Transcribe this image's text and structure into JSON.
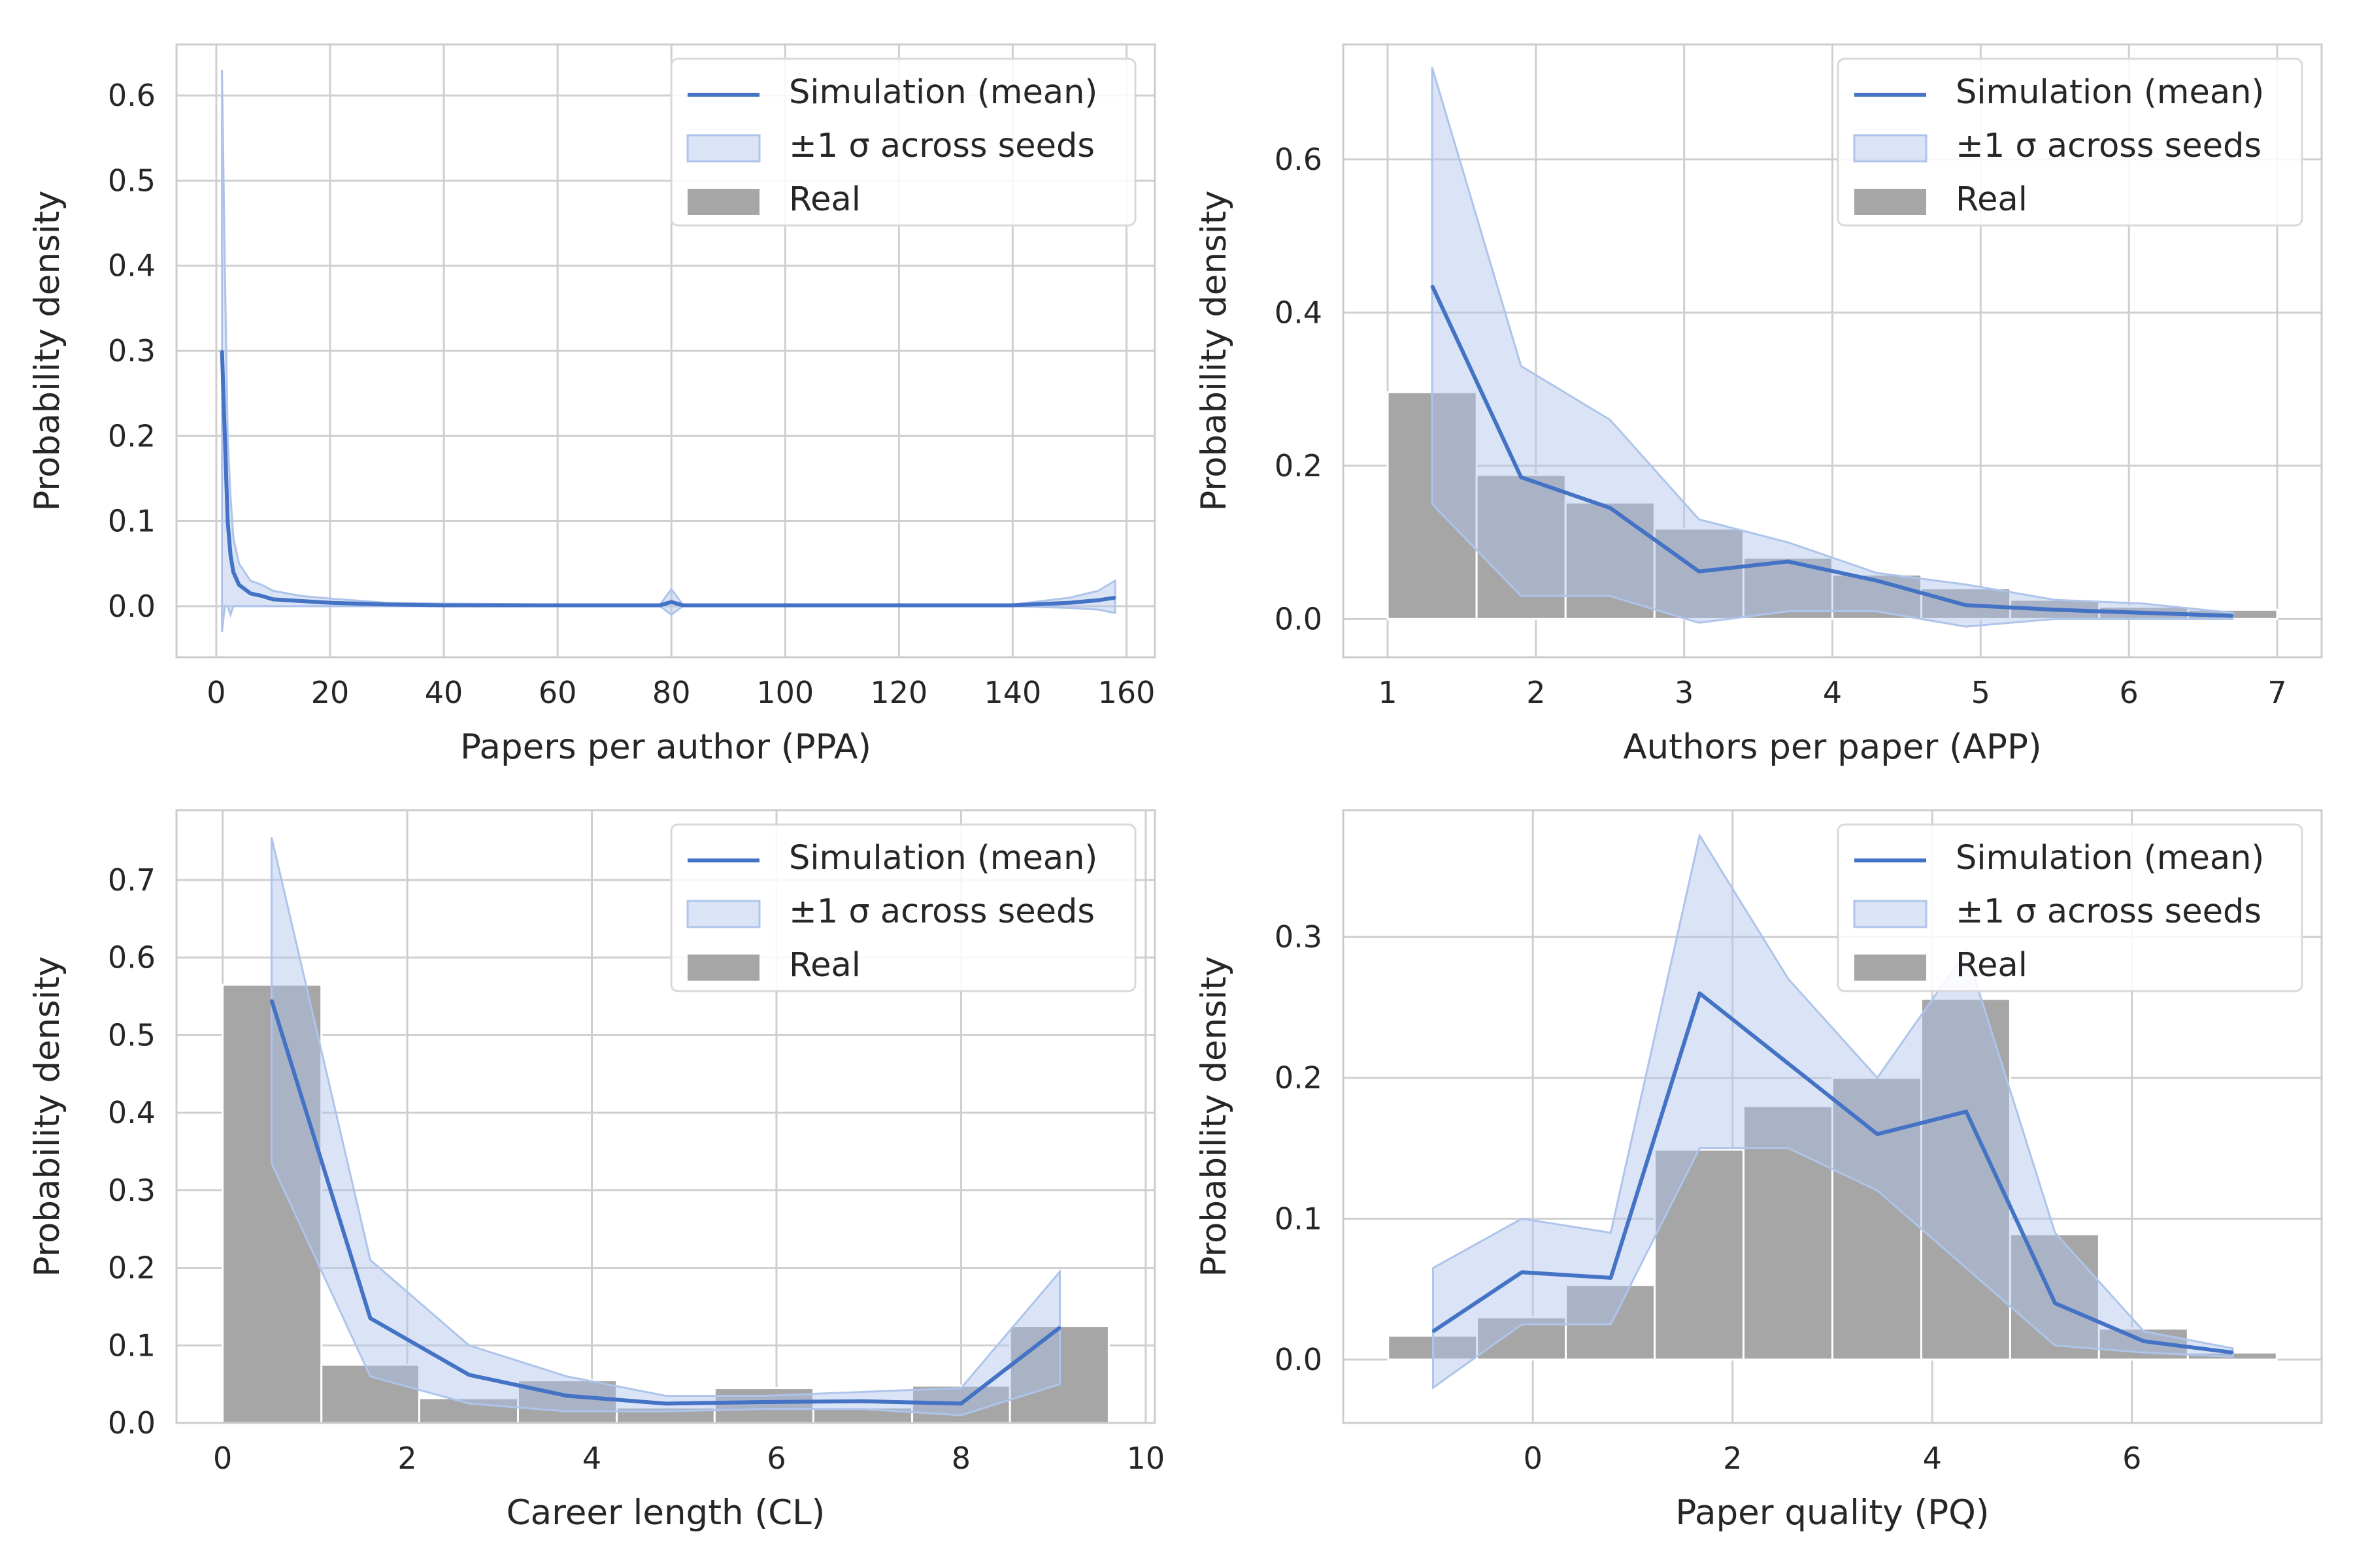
{
  "figure": {
    "colors": {
      "sim": "#4472c4",
      "band": "#aec4ea",
      "real": "#a6a6a6",
      "grid": "#cfcfcf",
      "frame": "#cccccc"
    }
  },
  "legend": {
    "entries": [
      "Simulation (mean)",
      "±1 σ across seeds",
      "Real"
    ]
  },
  "chart_data": [
    {
      "type": "line",
      "xlabel": "Papers per author (PPA)",
      "ylabel": "Probability density",
      "xlim": [
        -7,
        165
      ],
      "ylim": [
        -0.06,
        0.66
      ],
      "xticks": [
        0,
        20,
        40,
        60,
        80,
        100,
        120,
        140,
        160
      ],
      "yticks": [
        0.0,
        0.1,
        0.2,
        0.3,
        0.4,
        0.5,
        0.6
      ],
      "grid": true,
      "legend_position": "top-right",
      "real_bins": [],
      "sim": {
        "x": [
          1,
          1.5,
          2,
          2.5,
          3,
          4,
          5,
          6,
          8,
          10,
          15,
          20,
          30,
          40,
          60,
          78,
          80,
          82,
          100,
          120,
          140,
          150,
          155,
          158
        ],
        "y": [
          0.3,
          0.2,
          0.1,
          0.06,
          0.04,
          0.025,
          0.02,
          0.015,
          0.012,
          0.008,
          0.006,
          0.004,
          0.002,
          0.001,
          0.001,
          0.001,
          0.005,
          0.001,
          0.001,
          0.001,
          0.001,
          0.004,
          0.007,
          0.01
        ]
      },
      "band": {
        "upper": [
          0.63,
          0.4,
          0.2,
          0.13,
          0.08,
          0.05,
          0.04,
          0.03,
          0.025,
          0.018,
          0.012,
          0.009,
          0.004,
          0.003,
          0.002,
          0.002,
          0.02,
          0.002,
          0.002,
          0.002,
          0.002,
          0.01,
          0.018,
          0.03
        ],
        "lower": [
          -0.03,
          0.0,
          0.0,
          -0.01,
          0.0,
          0.0,
          0.0,
          0.0,
          0.0,
          0.0,
          0.0,
          0.0,
          0.0,
          0.0,
          0.0,
          0.0,
          -0.01,
          0.0,
          0.0,
          0.0,
          0.0,
          -0.002,
          -0.004,
          -0.008
        ]
      }
    },
    {
      "type": "line",
      "xlabel": "Authors per paper (APP)",
      "ylabel": "Probability density",
      "xlim": [
        0.7,
        7.3
      ],
      "ylim": [
        -0.05,
        0.75
      ],
      "xticks": [
        1,
        2,
        3,
        4,
        5,
        6,
        7
      ],
      "yticks": [
        0.0,
        0.2,
        0.4,
        0.6
      ],
      "grid": true,
      "legend_position": "top-right",
      "real_bins": [
        {
          "x0": 1.0,
          "x1": 1.6,
          "h": 0.296
        },
        {
          "x0": 1.6,
          "x1": 2.2,
          "h": 0.188
        },
        {
          "x0": 2.2,
          "x1": 2.8,
          "h": 0.152
        },
        {
          "x0": 2.8,
          "x1": 3.4,
          "h": 0.118
        },
        {
          "x0": 3.4,
          "x1": 4.0,
          "h": 0.08
        },
        {
          "x0": 4.0,
          "x1": 4.6,
          "h": 0.058
        },
        {
          "x0": 4.6,
          "x1": 5.2,
          "h": 0.04
        },
        {
          "x0": 5.2,
          "x1": 5.8,
          "h": 0.025
        },
        {
          "x0": 5.8,
          "x1": 6.4,
          "h": 0.016
        },
        {
          "x0": 6.4,
          "x1": 7.0,
          "h": 0.012
        }
      ],
      "sim": {
        "x": [
          1.3,
          1.9,
          2.5,
          3.1,
          3.7,
          4.3,
          4.9,
          5.5,
          6.1,
          6.7
        ],
        "y": [
          0.435,
          0.185,
          0.145,
          0.062,
          0.075,
          0.05,
          0.018,
          0.012,
          0.008,
          0.004
        ]
      },
      "band": {
        "upper": [
          0.72,
          0.33,
          0.26,
          0.13,
          0.1,
          0.06,
          0.045,
          0.025,
          0.02,
          0.008
        ],
        "lower": [
          0.15,
          0.03,
          0.03,
          -0.005,
          0.01,
          0.01,
          -0.01,
          0.0,
          0.0,
          0.0
        ]
      }
    },
    {
      "type": "line",
      "xlabel": "Career length (CL)",
      "ylabel": "Probability density",
      "xlim": [
        -0.5,
        10.1
      ],
      "ylim": [
        0.0,
        0.79
      ],
      "xticks": [
        0,
        2,
        4,
        6,
        8,
        10
      ],
      "yticks": [
        0.0,
        0.1,
        0.2,
        0.3,
        0.4,
        0.5,
        0.6,
        0.7
      ],
      "grid": true,
      "legend_position": "top-right",
      "real_bins": [
        {
          "x0": 0.0,
          "x1": 1.07,
          "h": 0.565
        },
        {
          "x0": 1.07,
          "x1": 2.13,
          "h": 0.075
        },
        {
          "x0": 2.13,
          "x1": 3.2,
          "h": 0.032
        },
        {
          "x0": 3.2,
          "x1": 4.27,
          "h": 0.055
        },
        {
          "x0": 4.27,
          "x1": 5.33,
          "h": 0.02
        },
        {
          "x0": 5.33,
          "x1": 6.4,
          "h": 0.045
        },
        {
          "x0": 6.4,
          "x1": 7.47,
          "h": 0.02
        },
        {
          "x0": 7.47,
          "x1": 8.53,
          "h": 0.048
        },
        {
          "x0": 8.53,
          "x1": 9.6,
          "h": 0.125
        }
      ],
      "sim": {
        "x": [
          0.53,
          1.6,
          2.67,
          3.73,
          4.8,
          5.87,
          6.93,
          8.0,
          9.07
        ],
        "y": [
          0.545,
          0.135,
          0.062,
          0.035,
          0.025,
          0.027,
          0.028,
          0.025,
          0.123
        ]
      },
      "band": {
        "upper": [
          0.755,
          0.21,
          0.1,
          0.06,
          0.035,
          0.035,
          0.04,
          0.045,
          0.195
        ],
        "lower": [
          0.335,
          0.06,
          0.025,
          0.015,
          0.015,
          0.018,
          0.018,
          0.01,
          0.05
        ]
      }
    },
    {
      "type": "line",
      "xlabel": "Paper quality (PQ)",
      "ylabel": "Probability density",
      "xlim": [
        -1.9,
        7.9
      ],
      "ylim": [
        -0.045,
        0.39
      ],
      "xticks": [
        0,
        2,
        4,
        6
      ],
      "yticks": [
        0.0,
        0.1,
        0.2,
        0.3
      ],
      "grid": true,
      "legend_position": "top-right",
      "real_bins": [
        {
          "x0": -1.45,
          "x1": -0.56,
          "h": 0.017
        },
        {
          "x0": -0.56,
          "x1": 0.33,
          "h": 0.03
        },
        {
          "x0": 0.33,
          "x1": 1.22,
          "h": 0.053
        },
        {
          "x0": 1.22,
          "x1": 2.11,
          "h": 0.149
        },
        {
          "x0": 2.11,
          "x1": 3.0,
          "h": 0.18
        },
        {
          "x0": 3.0,
          "x1": 3.89,
          "h": 0.2
        },
        {
          "x0": 3.89,
          "x1": 4.78,
          "h": 0.256
        },
        {
          "x0": 4.78,
          "x1": 5.67,
          "h": 0.089
        },
        {
          "x0": 5.67,
          "x1": 6.56,
          "h": 0.022
        },
        {
          "x0": 6.56,
          "x1": 7.45,
          "h": 0.005
        }
      ],
      "sim": {
        "x": [
          -1.0,
          -0.11,
          0.78,
          1.67,
          2.56,
          3.45,
          4.34,
          5.23,
          6.12,
          7.01
        ],
        "y": [
          0.02,
          0.062,
          0.058,
          0.26,
          0.21,
          0.16,
          0.176,
          0.04,
          0.013,
          0.005
        ]
      },
      "band": {
        "upper": [
          0.065,
          0.1,
          0.09,
          0.372,
          0.27,
          0.2,
          0.29,
          0.09,
          0.02,
          0.008
        ],
        "lower": [
          -0.02,
          0.025,
          0.025,
          0.15,
          0.15,
          0.12,
          0.065,
          0.01,
          0.005,
          0.002
        ]
      }
    }
  ]
}
